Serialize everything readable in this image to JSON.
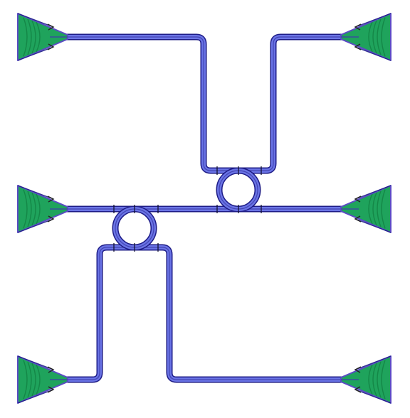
{
  "diagram": {
    "kind": "photonic-circuit-layout",
    "colors": {
      "waveguide_fill": "#6a74e6",
      "waveguide_stroke": "#1e1c86",
      "waveguide_core": "#3d3da8",
      "coupler_fill": "#1fa35c",
      "coupler_stroke": "#5b4bc4",
      "coupler_shade": "#0f7a3e",
      "port_line": "#111133",
      "background": "#ffffff"
    },
    "grating_couplers": [
      {
        "id": "gc-top-left",
        "facing": "right"
      },
      {
        "id": "gc-top-right",
        "facing": "left"
      },
      {
        "id": "gc-mid-left",
        "facing": "right"
      },
      {
        "id": "gc-mid-right",
        "facing": "left"
      },
      {
        "id": "gc-bottom-left",
        "facing": "right"
      },
      {
        "id": "gc-bottom-right",
        "facing": "left"
      }
    ],
    "ring_resonators": [
      {
        "id": "ring-upper"
      },
      {
        "id": "ring-lower"
      }
    ],
    "waveguides": [
      {
        "id": "bus-waveguide"
      },
      {
        "id": "drop-waveguide-upper"
      },
      {
        "id": "drop-waveguide-lower"
      }
    ]
  }
}
